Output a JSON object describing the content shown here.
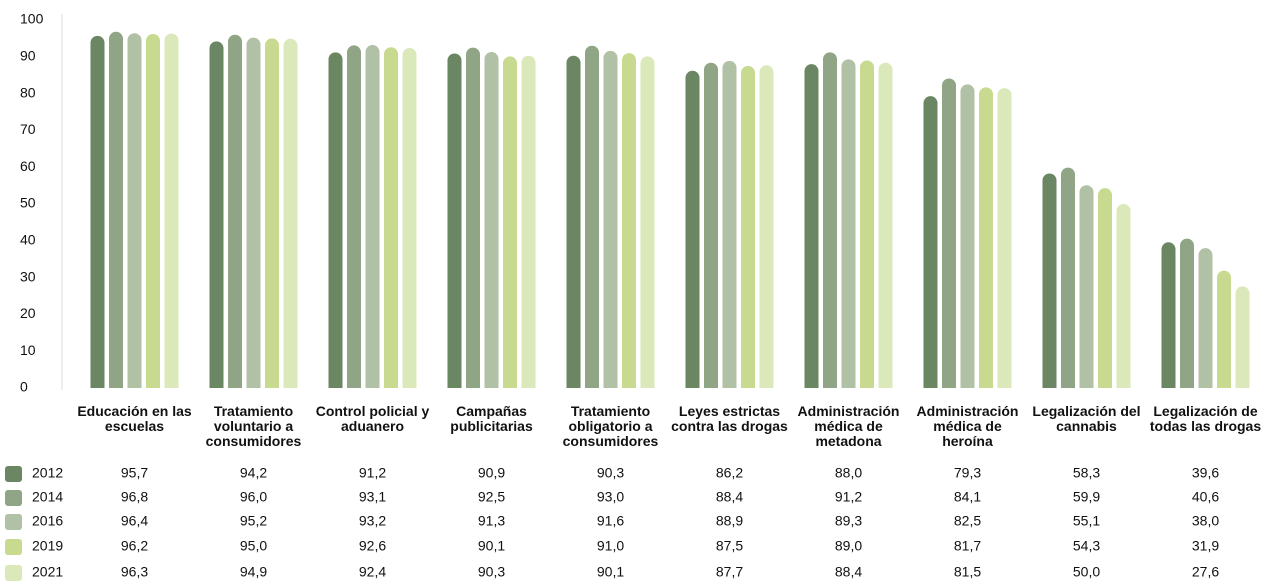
{
  "chart_data": {
    "type": "bar",
    "categories": [
      "Educación en las escuelas",
      "Tratamiento voluntario a consumidores",
      "Control policial y aduanero",
      "Campañas publicitarias",
      "Tratamiento obligatorio a consumidores",
      "Leyes estrictas contra las drogas",
      "Administración médica de metadona",
      "Administración médica de heroína",
      "Legalización del cannabis",
      "Legalización de todas las drogas"
    ],
    "series": [
      {
        "name": "2012",
        "color": "#6b8662",
        "values": [
          95.7,
          94.2,
          91.2,
          90.9,
          90.3,
          86.2,
          88.0,
          79.3,
          58.3,
          39.6
        ],
        "value_labels": [
          "95,7",
          "94,2",
          "91,2",
          "90,9",
          "90,3",
          "86,2",
          "88,0",
          "79,3",
          "58,3",
          "39,6"
        ]
      },
      {
        "name": "2014",
        "color": "#8fa585",
        "values": [
          96.8,
          96.0,
          93.1,
          92.5,
          93.0,
          88.4,
          91.2,
          84.1,
          59.9,
          40.6
        ],
        "value_labels": [
          "96,8",
          "96,0",
          "93,1",
          "92,5",
          "93,0",
          "88,4",
          "91,2",
          "84,1",
          "59,9",
          "40,6"
        ]
      },
      {
        "name": "2016",
        "color": "#b1c1a5",
        "values": [
          96.4,
          95.2,
          93.2,
          91.3,
          91.6,
          88.9,
          89.3,
          82.5,
          55.1,
          38.0
        ],
        "value_labels": [
          "96,4",
          "95,2",
          "93,2",
          "91,3",
          "91,6",
          "88,9",
          "89,3",
          "82,5",
          "55,1",
          "38,0"
        ]
      },
      {
        "name": "2019",
        "color": "#c7da8f",
        "values": [
          96.2,
          95.0,
          92.6,
          90.1,
          91.0,
          87.5,
          89.0,
          81.7,
          54.3,
          31.9
        ],
        "value_labels": [
          "96,2",
          "95,0",
          "92,6",
          "90,1",
          "91,0",
          "87,5",
          "89,0",
          "81,7",
          "54,3",
          "31,9"
        ]
      },
      {
        "name": "2021",
        "color": "#dae8ba",
        "values": [
          96.3,
          94.9,
          92.4,
          90.3,
          90.1,
          87.7,
          88.4,
          81.5,
          50.0,
          27.6
        ],
        "value_labels": [
          "96,3",
          "94,9",
          "92,4",
          "90,3",
          "90,1",
          "87,7",
          "88,4",
          "81,5",
          "50,0",
          "27,6"
        ]
      }
    ],
    "ylim": [
      0,
      100
    ],
    "yticks": [
      0,
      10,
      20,
      30,
      40,
      50,
      60,
      70,
      80,
      90,
      100
    ],
    "grid": false
  }
}
